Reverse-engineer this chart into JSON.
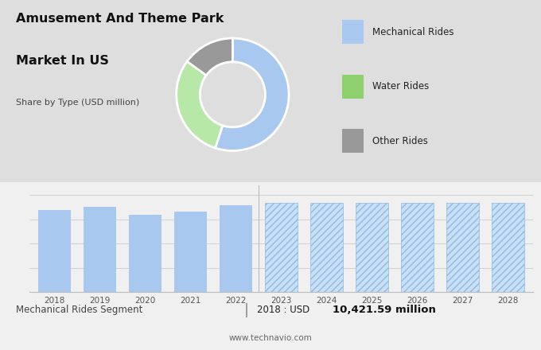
{
  "title_line1": "Amusement And Theme Park",
  "title_line2": "Market In US",
  "subtitle": "Share by Type (USD million)",
  "bg_color_top": "#dedede",
  "bg_color_bottom": "#f0f0f0",
  "pie_values": [
    55,
    30,
    15
  ],
  "pie_colors": [
    "#a8c8f0",
    "#b8e8a8",
    "#999999"
  ],
  "pie_labels": [
    "Mechanical Rides",
    "Water Rides",
    "Other Rides"
  ],
  "legend_colors": [
    "#a8c8f0",
    "#8ecf6e",
    "#999999"
  ],
  "bar_years_solid": [
    2018,
    2019,
    2020,
    2021,
    2022
  ],
  "bar_values_solid": [
    85,
    88,
    80,
    83,
    90
  ],
  "bar_years_hatched": [
    2023,
    2024,
    2025,
    2026,
    2027,
    2028
  ],
  "bar_values_hatched": [
    92,
    92,
    92,
    92,
    92,
    92
  ],
  "bar_color_solid": "#a8c8f0",
  "bar_color_hatched": "#c8dff8",
  "bar_hatch_color": "#90b8e0",
  "footer_left": "Mechanical Rides Segment",
  "footer_year": "2018 : USD ",
  "footer_value": "10,421.59 million",
  "footer_url": "www.technavio.com",
  "divider_text": "|"
}
